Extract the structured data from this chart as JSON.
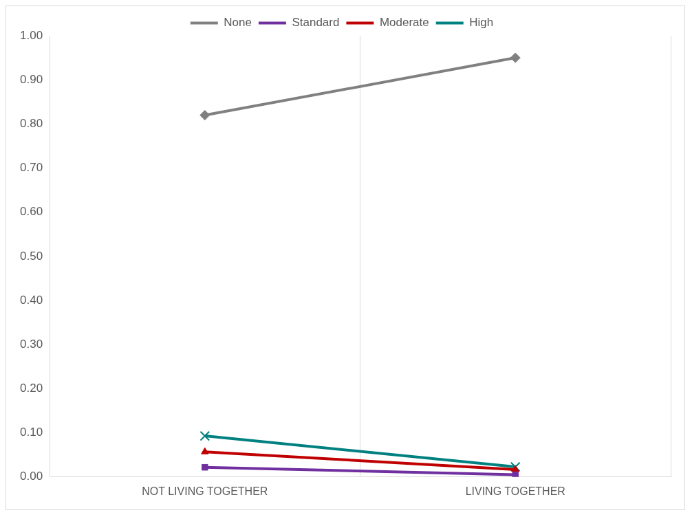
{
  "chart_data": {
    "type": "line",
    "categories": [
      "NOT LIVING TOGETHER",
      "LIVING TOGETHER"
    ],
    "series": [
      {
        "name": "None",
        "color": "#808080",
        "marker": "diamond",
        "values": [
          0.82,
          0.95
        ]
      },
      {
        "name": "Standard",
        "color": "#7030a0",
        "marker": "square",
        "values": [
          0.022,
          0.005
        ]
      },
      {
        "name": "Moderate",
        "color": "#c00000",
        "marker": "triangle",
        "values": [
          0.057,
          0.017
        ]
      },
      {
        "name": "High",
        "color": "#008080",
        "marker": "cross",
        "values": [
          0.093,
          0.023
        ]
      }
    ],
    "ylim": [
      0,
      1
    ],
    "yticks": [
      {
        "value": 0,
        "label": "0.00"
      },
      {
        "value": 0.1,
        "label": "0.10"
      },
      {
        "value": 0.2,
        "label": "0.20"
      },
      {
        "value": 0.3,
        "label": "0.30"
      },
      {
        "value": 0.4,
        "label": "0.40"
      },
      {
        "value": 0.5,
        "label": "0.50"
      },
      {
        "value": 0.6,
        "label": "0.60"
      },
      {
        "value": 0.7,
        "label": "0.70"
      },
      {
        "value": 0.8,
        "label": "0.80"
      },
      {
        "value": 0.9,
        "label": "0.90"
      },
      {
        "value": 1,
        "label": "1.00"
      }
    ],
    "grid": "x",
    "legend": "top"
  }
}
